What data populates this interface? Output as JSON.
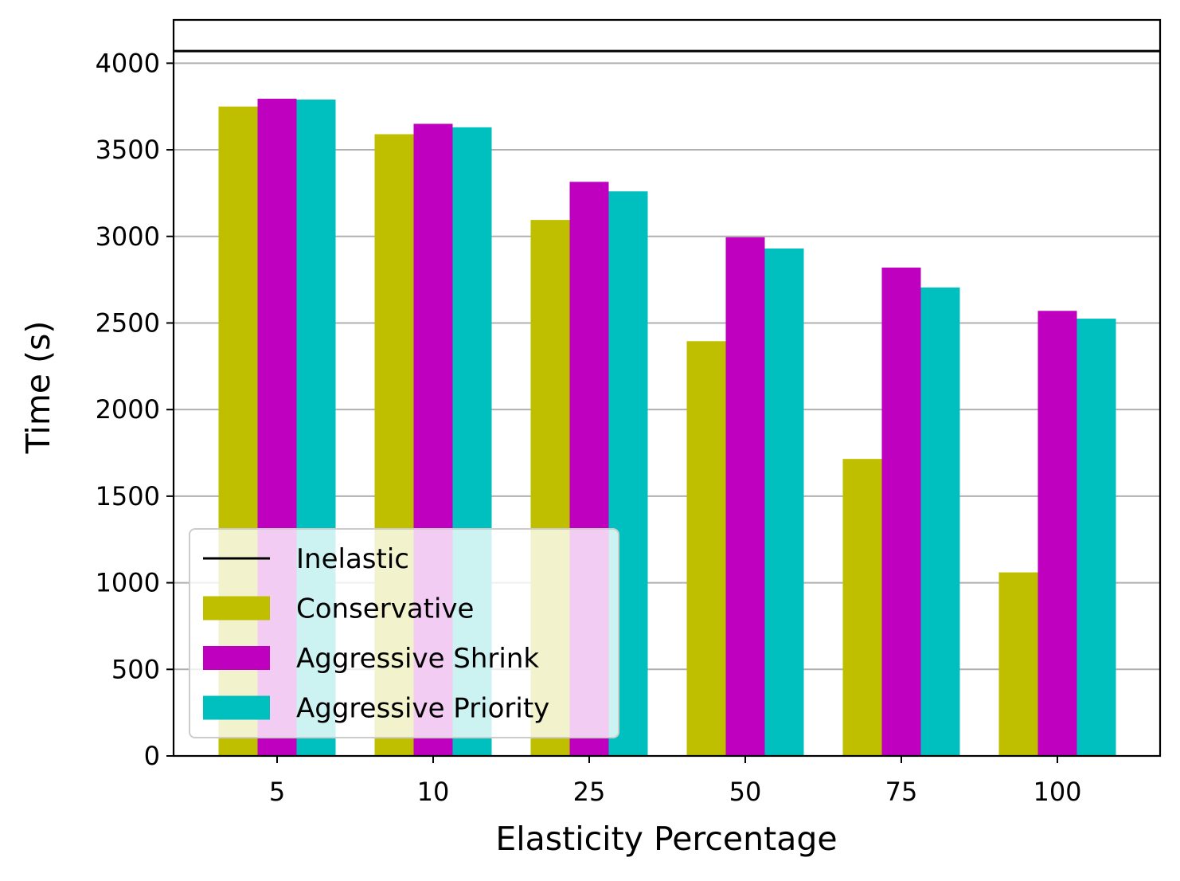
{
  "chart_data": {
    "type": "bar",
    "title": "",
    "xlabel": "Elasticity Percentage",
    "ylabel": "Time (s)",
    "categories": [
      "5",
      "10",
      "25",
      "50",
      "75",
      "100"
    ],
    "ylim": [
      0,
      4250
    ],
    "yticks": [
      0,
      500,
      1000,
      1500,
      2000,
      2500,
      3000,
      3500,
      4000
    ],
    "grid": "y",
    "legend_position": "bottom-left",
    "reference_line": {
      "name": "Inelastic",
      "value": 4070,
      "color": "#000000"
    },
    "series": [
      {
        "name": "Conservative",
        "color": "#bfbf00",
        "values": [
          3750,
          3590,
          3095,
          2395,
          1715,
          1060
        ]
      },
      {
        "name": "Aggressive Shrink",
        "color": "#bf00bf",
        "values": [
          3795,
          3650,
          3315,
          2995,
          2820,
          2570
        ]
      },
      {
        "name": "Aggressive Priority",
        "color": "#00bfbf",
        "values": [
          3790,
          3630,
          3260,
          2930,
          2705,
          2525
        ]
      }
    ]
  }
}
